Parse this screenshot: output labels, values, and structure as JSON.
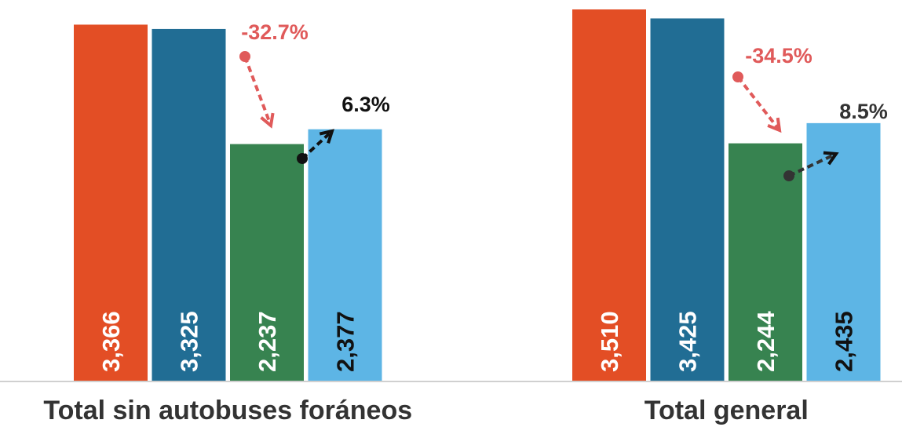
{
  "chart_data": {
    "type": "bar",
    "categories": [
      "Total sin autobuses foráneos",
      "Total general"
    ],
    "series": [
      {
        "color": "#e34e25",
        "values": [
          3366,
          3510
        ],
        "value_labels": [
          "3,366",
          "3,510"
        ]
      },
      {
        "color": "#216d94",
        "values": [
          3325,
          3425
        ],
        "value_labels": [
          "3,325",
          "3,425"
        ]
      },
      {
        "color": "#378350",
        "values": [
          2237,
          2244
        ],
        "value_labels": [
          "2,237",
          "2,244"
        ]
      },
      {
        "color": "#5db5e5",
        "values": [
          2377,
          2435
        ],
        "value_labels": [
          "2,377",
          "2,435"
        ]
      }
    ],
    "ylim": [
      0,
      3510
    ],
    "annotations": [
      {
        "text": "-32.7%",
        "color": "#e05a5a"
      },
      {
        "text": "6.3%",
        "color": "#111111"
      },
      {
        "text": "-34.5%",
        "color": "#e05a5a"
      },
      {
        "text": "8.5%",
        "color": "#333333"
      }
    ]
  }
}
